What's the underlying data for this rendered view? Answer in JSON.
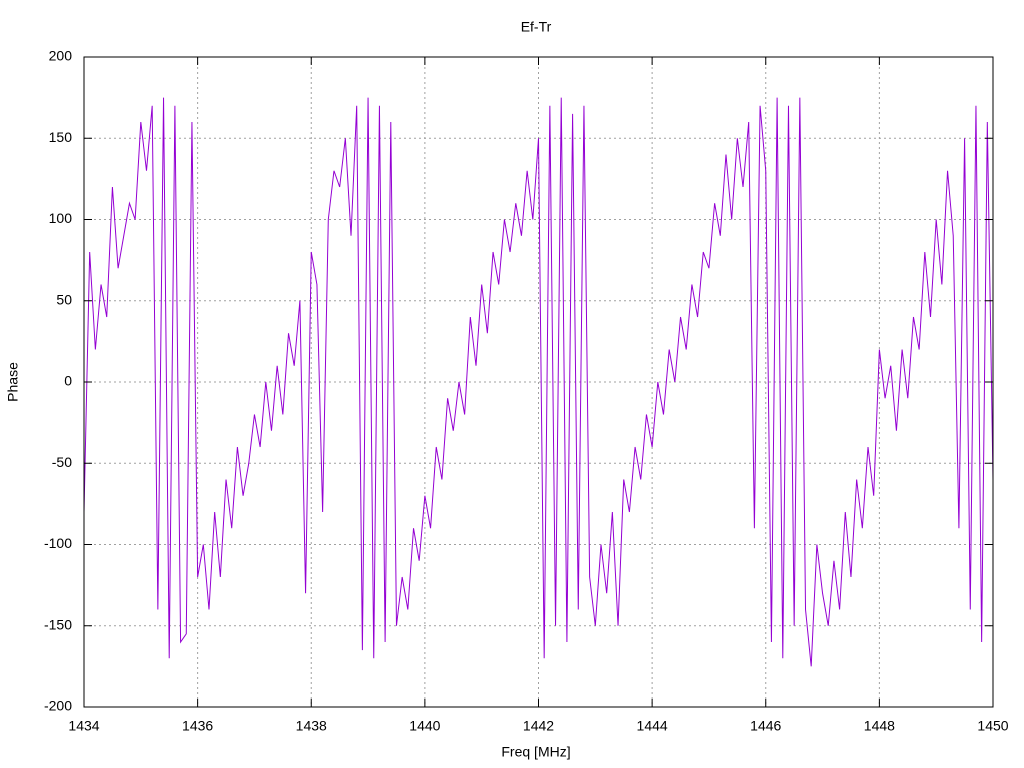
{
  "chart_data": {
    "type": "line",
    "title": "Ef-Tr",
    "x_label": "Freq [MHz]",
    "y_label": "Phase",
    "xlim": [
      1434,
      1450
    ],
    "ylim": [
      -200,
      200
    ],
    "xticks": [
      1434,
      1436,
      1438,
      1440,
      1442,
      1444,
      1446,
      1448,
      1450
    ],
    "yticks": [
      -200,
      -150,
      -100,
      -50,
      0,
      50,
      100,
      150,
      200
    ],
    "grid": true,
    "x": [
      1434.0,
      1434.1,
      1434.2,
      1434.3,
      1434.4,
      1434.5,
      1434.6,
      1434.7,
      1434.8,
      1434.9,
      1435.0,
      1435.1,
      1435.2,
      1435.3,
      1435.4,
      1435.5,
      1435.6,
      1435.7,
      1435.8,
      1435.9,
      1436.0,
      1436.1,
      1436.2,
      1436.3,
      1436.4,
      1436.5,
      1436.6,
      1436.7,
      1436.8,
      1436.9,
      1437.0,
      1437.1,
      1437.2,
      1437.3,
      1437.4,
      1437.5,
      1437.6,
      1437.7,
      1437.8,
      1437.9,
      1438.0,
      1438.1,
      1438.2,
      1438.3,
      1438.4,
      1438.5,
      1438.6,
      1438.7,
      1438.8,
      1438.9,
      1439.0,
      1439.1,
      1439.2,
      1439.3,
      1439.4,
      1439.5,
      1439.6,
      1439.7,
      1439.8,
      1439.9,
      1440.0,
      1440.1,
      1440.2,
      1440.3,
      1440.4,
      1440.5,
      1440.6,
      1440.7,
      1440.8,
      1440.9,
      1441.0,
      1441.1,
      1441.2,
      1441.3,
      1441.4,
      1441.5,
      1441.6,
      1441.7,
      1441.8,
      1441.9,
      1442.0,
      1442.1,
      1442.2,
      1442.3,
      1442.4,
      1442.5,
      1442.6,
      1442.7,
      1442.8,
      1442.9,
      1443.0,
      1443.1,
      1443.2,
      1443.3,
      1443.4,
      1443.5,
      1443.6,
      1443.7,
      1443.8,
      1443.9,
      1444.0,
      1444.1,
      1444.2,
      1444.3,
      1444.4,
      1444.5,
      1444.6,
      1444.7,
      1444.8,
      1444.9,
      1445.0,
      1445.1,
      1445.2,
      1445.3,
      1445.4,
      1445.5,
      1445.6,
      1445.7,
      1445.8,
      1445.9,
      1446.0,
      1446.1,
      1446.2,
      1446.3,
      1446.4,
      1446.5,
      1446.6,
      1446.7,
      1446.8,
      1446.9,
      1447.0,
      1447.1,
      1447.2,
      1447.3,
      1447.4,
      1447.5,
      1447.6,
      1447.7,
      1447.8,
      1447.9,
      1448.0,
      1448.1,
      1448.2,
      1448.3,
      1448.4,
      1448.5,
      1448.6,
      1448.7,
      1448.8,
      1448.9,
      1449.0,
      1449.1,
      1449.2,
      1449.3,
      1449.4,
      1449.5,
      1449.6,
      1449.7,
      1449.8,
      1449.9,
      1450.0
    ],
    "series": [
      {
        "color": "#9400d3",
        "values": [
          -80,
          80,
          20,
          60,
          40,
          120,
          70,
          90,
          110,
          100,
          160,
          130,
          170,
          -140,
          175,
          -170,
          170,
          -160,
          -155,
          160,
          -120,
          -100,
          -140,
          -80,
          -120,
          -60,
          -90,
          -40,
          -70,
          -50,
          -20,
          -40,
          0,
          -30,
          10,
          -20,
          30,
          10,
          50,
          -130,
          80,
          60,
          -80,
          100,
          130,
          120,
          150,
          90,
          170,
          -165,
          175,
          -170,
          170,
          -160,
          160,
          -150,
          -120,
          -140,
          -90,
          -110,
          -70,
          -90,
          -40,
          -60,
          -10,
          -30,
          0,
          -20,
          40,
          10,
          60,
          30,
          80,
          60,
          100,
          80,
          110,
          90,
          130,
          100,
          150,
          -170,
          170,
          -150,
          175,
          -160,
          165,
          -140,
          170,
          -120,
          -150,
          -100,
          -130,
          -80,
          -150,
          -60,
          -80,
          -40,
          -60,
          -20,
          -40,
          0,
          -20,
          20,
          0,
          40,
          20,
          60,
          40,
          80,
          70,
          110,
          90,
          140,
          100,
          150,
          120,
          160,
          -90,
          170,
          130,
          -160,
          175,
          -170,
          170,
          -150,
          175,
          -140,
          -175,
          -100,
          -130,
          -150,
          -110,
          -140,
          -80,
          -120,
          -60,
          -90,
          -40,
          -70,
          20,
          -10,
          10,
          -30,
          20,
          -10,
          40,
          20,
          80,
          40,
          100,
          60,
          130,
          90,
          -90,
          150,
          -140,
          170,
          -160,
          160,
          -60
        ]
      }
    ]
  }
}
